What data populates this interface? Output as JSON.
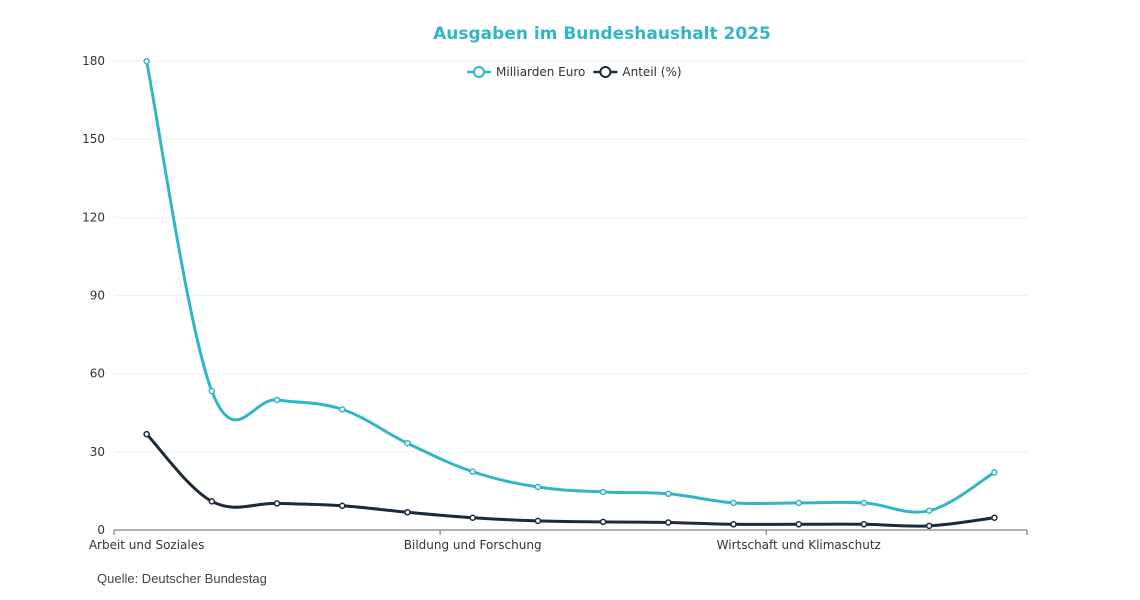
{
  "chart_data": {
    "type": "line",
    "title": "Ausgaben im Bundeshaushalt 2025",
    "xlabel": "",
    "ylabel": "",
    "ylim": [
      0,
      180
    ],
    "yticks": [
      0,
      30,
      60,
      90,
      120,
      150,
      180
    ],
    "grid": true,
    "legend_position": "top-center",
    "categories": [
      "Arbeit und Soziales",
      "",
      "",
      "",
      "",
      "Bildung und Forschung",
      "",
      "",
      "",
      "",
      "Wirtschaft und Klimaschutz",
      "",
      "",
      ""
    ],
    "visible_category_labels": [
      "Arbeit und Soziales",
      "Bildung und Forschung",
      "Wirtschaft und Klimaschutz"
    ],
    "series": [
      {
        "name": "Milliarden Euro",
        "color": "#31b6c8",
        "values": [
          179.9,
          53.3,
          49.9,
          46.3,
          33.3,
          22.4,
          16.5,
          14.6,
          13.9,
          10.4,
          10.4,
          10.4,
          7.4,
          22.1
        ]
      },
      {
        "name": "Anteil (%)",
        "color": "#1b2b3b",
        "values": [
          36.8,
          11.0,
          10.2,
          9.3,
          6.8,
          4.7,
          3.5,
          3.1,
          2.9,
          2.2,
          2.2,
          2.2,
          1.6,
          4.7
        ]
      }
    ],
    "source": "Quelle: Deutscher Bundestag"
  },
  "colors": {
    "title": "#31b6c8",
    "axis": "#666666",
    "grid": "#eeeeee"
  }
}
